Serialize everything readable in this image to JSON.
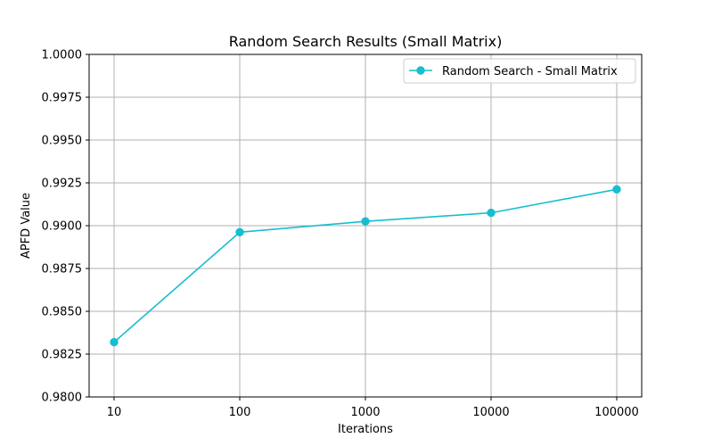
{
  "chart_data": {
    "type": "line",
    "title": "Random Search Results (Small Matrix)",
    "xlabel": "Iterations",
    "ylabel": "APFD Value",
    "categories": [
      "10",
      "100",
      "1000",
      "10000",
      "100000"
    ],
    "series": [
      {
        "name": "Random Search - Small Matrix",
        "values": [
          0.9832,
          0.98962,
          0.99025,
          0.99075,
          0.99212
        ],
        "color": "#17becf",
        "marker": "circle"
      }
    ],
    "ylim": [
      0.98,
      1.0
    ],
    "yticks": [
      "0.9800",
      "0.9825",
      "0.9850",
      "0.9875",
      "0.9900",
      "0.9925",
      "0.9950",
      "0.9975",
      "1.0000"
    ],
    "grid": true,
    "legend": "top-right"
  }
}
